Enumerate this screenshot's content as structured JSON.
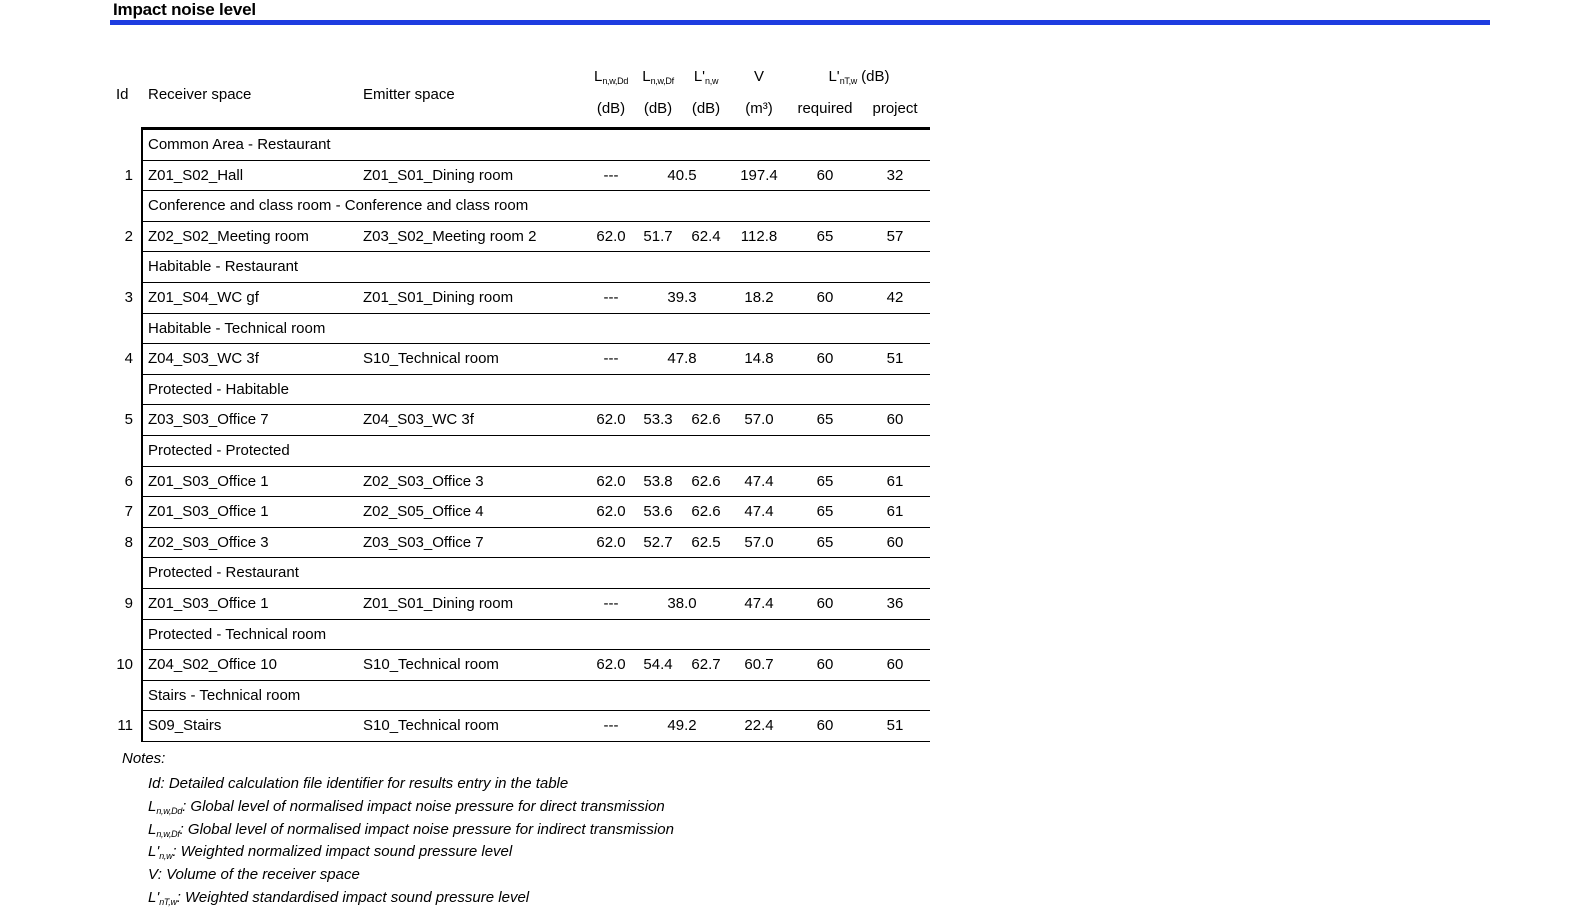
{
  "page": {
    "title": "Impact noise level",
    "accent_color": "#1e3ce0"
  },
  "table": {
    "headers": {
      "id": "Id",
      "receiver": "Receiver space",
      "emitter": "Emitter space",
      "col1_main": "L",
      "col1_sub": "n,w,Dd",
      "col1_unit": "(dB)",
      "col2_main": "L",
      "col2_sub": "n,w,Df",
      "col2_unit": "(dB)",
      "col3_main": "L'",
      "col3_sub": "n,w",
      "col3_unit": "(dB)",
      "col4_main": "V",
      "col4_unit": "(m³)",
      "col5_main": "L'",
      "col5_sub": "nT,w",
      "col5_suffix": " (dB)",
      "col5_required": "required",
      "col5_project": "project"
    },
    "rows": [
      {
        "kind": "group",
        "label": "Common Area - Restaurant"
      },
      {
        "kind": "data",
        "id": "1",
        "receiver": "Z01_S02_Hall",
        "emitter": "Z01_S01_Dining room",
        "dd": "---",
        "df": "40.5",
        "nw": "",
        "merged": true,
        "v": "197.4",
        "req": "60",
        "proj": "32"
      },
      {
        "kind": "group",
        "label": "Conference and class room - Conference and class room"
      },
      {
        "kind": "data",
        "id": "2",
        "receiver": "Z02_S02_Meeting room",
        "emitter": "Z03_S02_Meeting room 2",
        "dd": "62.0",
        "df": "51.7",
        "nw": "62.4",
        "merged": false,
        "v": "112.8",
        "req": "65",
        "proj": "57"
      },
      {
        "kind": "group",
        "label": "Habitable - Restaurant"
      },
      {
        "kind": "data",
        "id": "3",
        "receiver": "Z01_S04_WC gf",
        "emitter": "Z01_S01_Dining room",
        "dd": "---",
        "df": "39.3",
        "nw": "",
        "merged": true,
        "v": "18.2",
        "req": "60",
        "proj": "42"
      },
      {
        "kind": "group",
        "label": "Habitable - Technical room"
      },
      {
        "kind": "data",
        "id": "4",
        "receiver": "Z04_S03_WC 3f",
        "emitter": "S10_Technical room",
        "dd": "---",
        "df": "47.8",
        "nw": "",
        "merged": true,
        "v": "14.8",
        "req": "60",
        "proj": "51"
      },
      {
        "kind": "group",
        "label": "Protected - Habitable"
      },
      {
        "kind": "data",
        "id": "5",
        "receiver": "Z03_S03_Office 7",
        "emitter": "Z04_S03_WC 3f",
        "dd": "62.0",
        "df": "53.3",
        "nw": "62.6",
        "merged": false,
        "v": "57.0",
        "req": "65",
        "proj": "60"
      },
      {
        "kind": "group",
        "label": "Protected - Protected"
      },
      {
        "kind": "data",
        "id": "6",
        "receiver": "Z01_S03_Office 1",
        "emitter": "Z02_S03_Office 3",
        "dd": "62.0",
        "df": "53.8",
        "nw": "62.6",
        "merged": false,
        "v": "47.4",
        "req": "65",
        "proj": "61"
      },
      {
        "kind": "data",
        "id": "7",
        "receiver": "Z01_S03_Office 1",
        "emitter": "Z02_S05_Office 4",
        "dd": "62.0",
        "df": "53.6",
        "nw": "62.6",
        "merged": false,
        "v": "47.4",
        "req": "65",
        "proj": "61"
      },
      {
        "kind": "data",
        "id": "8",
        "receiver": "Z02_S03_Office 3",
        "emitter": "Z03_S03_Office 7",
        "dd": "62.0",
        "df": "52.7",
        "nw": "62.5",
        "merged": false,
        "v": "57.0",
        "req": "65",
        "proj": "60"
      },
      {
        "kind": "group",
        "label": "Protected - Restaurant"
      },
      {
        "kind": "data",
        "id": "9",
        "receiver": "Z01_S03_Office 1",
        "emitter": "Z01_S01_Dining room",
        "dd": "---",
        "df": "38.0",
        "nw": "",
        "merged": true,
        "v": "47.4",
        "req": "60",
        "proj": "36"
      },
      {
        "kind": "group",
        "label": "Protected - Technical room"
      },
      {
        "kind": "data",
        "id": "10",
        "receiver": "Z04_S02_Office 10",
        "emitter": "S10_Technical room",
        "dd": "62.0",
        "df": "54.4",
        "nw": "62.7",
        "merged": false,
        "v": "60.7",
        "req": "60",
        "proj": "60"
      },
      {
        "kind": "group",
        "label": "Stairs - Technical room"
      },
      {
        "kind": "data",
        "id": "11",
        "receiver": "S09_Stairs",
        "emitter": "S10_Technical room",
        "dd": "---",
        "df": "49.2",
        "nw": "",
        "merged": true,
        "v": "22.4",
        "req": "60",
        "proj": "51"
      }
    ]
  },
  "notes": {
    "label": "Notes:",
    "items": [
      {
        "sym": "Id",
        "sub": "",
        "text": ": Detailed calculation file identifier for results entry in the table"
      },
      {
        "sym": "L",
        "sub": "n,w,Dd",
        "text": ": Global level of normalised impact noise pressure for direct transmission"
      },
      {
        "sym": "L",
        "sub": "n,w,Df",
        "text": ": Global level of normalised impact noise pressure for indirect transmission"
      },
      {
        "sym": "L'",
        "sub": "n,w",
        "text": ": Weighted normalized impact sound pressure level"
      },
      {
        "sym": "V",
        "sub": "",
        "text": ": Volume of the receiver space"
      },
      {
        "sym": "L'",
        "sub": "nT,w",
        "text": ": Weighted standardised impact sound pressure level"
      }
    ]
  }
}
